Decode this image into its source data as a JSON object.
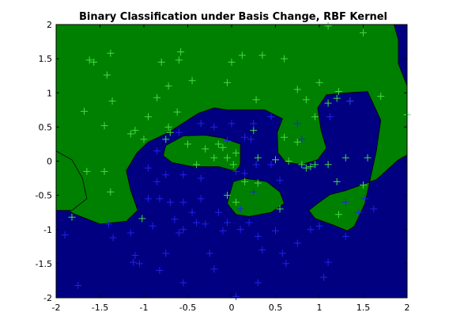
{
  "chart_data": {
    "type": "scatter",
    "title": "Binary Classification under Basis Change, RBF Kernel",
    "xlabel": "",
    "ylabel": "",
    "xlim": [
      -2,
      2
    ],
    "ylim": [
      -2,
      2
    ],
    "xticks": [
      -2,
      -1.5,
      -1,
      -0.5,
      0,
      0.5,
      1,
      1.5,
      2
    ],
    "yticks": [
      -2,
      -1.5,
      -1,
      -0.5,
      0,
      0.5,
      1,
      1.5,
      2
    ],
    "xtick_labels": [
      "-2",
      "-1.5",
      "-1",
      "-0.5",
      "0",
      "0.5",
      "1",
      "1.5",
      "2"
    ],
    "ytick_labels": [
      "-2",
      "-1.5",
      "-1",
      "-0.5",
      "0",
      "0.5",
      "1",
      "1.5",
      "2"
    ],
    "grid": false,
    "marker": "+",
    "background_region": {
      "label": "class 2 decision region",
      "color": "#000080"
    },
    "decision_regions": [
      {
        "class": "class 1",
        "color": "#008000",
        "boundary": [
          [
            -2,
            2
          ],
          [
            1.85,
            2
          ],
          [
            1.9,
            1.78
          ],
          [
            1.9,
            1.43
          ],
          [
            2,
            1.1
          ],
          [
            2,
            0.09
          ],
          [
            1.9,
            0.02
          ],
          [
            1.65,
            -0.27
          ],
          [
            1.3,
            -0.43
          ],
          [
            1.12,
            -0.49
          ],
          [
            1,
            -0.6
          ],
          [
            0.88,
            -0.72
          ],
          [
            0.95,
            -0.84
          ],
          [
            1.15,
            -0.93
          ],
          [
            1.32,
            -1.02
          ],
          [
            1.4,
            -0.95
          ],
          [
            1.52,
            -0.62
          ],
          [
            1.65,
            0.15
          ],
          [
            1.7,
            0.6
          ],
          [
            1.55,
            1.02
          ],
          [
            1.3,
            1.0
          ],
          [
            1.08,
            0.97
          ],
          [
            0.98,
            0.78
          ],
          [
            1.02,
            0.45
          ],
          [
            1.08,
            0.19
          ],
          [
            0.98,
            0.02
          ],
          [
            0.8,
            -0.05
          ],
          [
            0.62,
            -0.02
          ],
          [
            0.53,
            0.12
          ],
          [
            0.52,
            0.42
          ],
          [
            0.58,
            0.62
          ],
          [
            0.38,
            0.75
          ],
          [
            0.14,
            0.75
          ],
          [
            -0.05,
            0.75
          ],
          [
            -0.2,
            0.78
          ],
          [
            -0.38,
            0.7
          ],
          [
            -0.55,
            0.56
          ],
          [
            -0.72,
            0.42
          ],
          [
            -0.95,
            0.28
          ],
          [
            -1.08,
            0.12
          ],
          [
            -1.2,
            -0.14
          ],
          [
            -1.15,
            -0.43
          ],
          [
            -1.07,
            -0.72
          ],
          [
            -1.2,
            -0.88
          ],
          [
            -1.5,
            -0.92
          ],
          [
            -1.8,
            -0.77
          ],
          [
            -2,
            -0.6
          ]
        ]
      },
      {
        "class": "class 1",
        "color": "#008000",
        "boundary": [
          [
            -2,
            0.15
          ],
          [
            -1.82,
            0.02
          ],
          [
            -1.7,
            -0.25
          ],
          [
            -1.65,
            -0.55
          ],
          [
            -1.82,
            -0.72
          ],
          [
            -2,
            -0.72
          ]
        ]
      },
      {
        "class": "class 1",
        "color": "#008000",
        "boundary": [
          [
            -0.75,
            0.23
          ],
          [
            -0.55,
            0.37
          ],
          [
            -0.3,
            0.38
          ],
          [
            -0.1,
            0.34
          ],
          [
            0.1,
            0.25
          ],
          [
            0.1,
            -0.05
          ],
          [
            0.05,
            -0.15
          ],
          [
            -0.15,
            -0.08
          ],
          [
            -0.45,
            -0.08
          ],
          [
            -0.68,
            -0.02
          ],
          [
            -0.78,
            0.08
          ]
        ]
      },
      {
        "class": "class 1",
        "color": "#008000",
        "boundary": [
          [
            -0.05,
            -0.62
          ],
          [
            0.02,
            -0.3
          ],
          [
            0.15,
            -0.25
          ],
          [
            0.4,
            -0.3
          ],
          [
            0.55,
            -0.45
          ],
          [
            0.6,
            -0.62
          ],
          [
            0.45,
            -0.75
          ],
          [
            0.2,
            -0.81
          ],
          [
            0.05,
            -0.78
          ]
        ]
      }
    ],
    "series": [
      {
        "name": "",
        "color": "#44dd44",
        "points": [
          [
            -1.62,
            1.48
          ],
          [
            -1.57,
            1.45
          ],
          [
            -1.38,
            1.58
          ],
          [
            -1.42,
            1.26
          ],
          [
            -1.36,
            0.88
          ],
          [
            -1.68,
            0.73
          ],
          [
            -1.45,
            0.52
          ],
          [
            -1.1,
            0.45
          ],
          [
            -0.95,
            0.65
          ],
          [
            -0.85,
            0.93
          ],
          [
            -0.8,
            1.45
          ],
          [
            -0.6,
            1.48
          ],
          [
            -0.58,
            1.6
          ],
          [
            -0.72,
            1.1
          ],
          [
            -0.45,
            1.18
          ],
          [
            -0.62,
            0.72
          ],
          [
            -0.72,
            0.5
          ],
          [
            -0.7,
            0.42
          ],
          [
            -0.75,
            0.32
          ],
          [
            -1.0,
            0.32
          ],
          [
            -1.15,
            0.4
          ],
          [
            -0.5,
            0.25
          ],
          [
            -0.3,
            0.18
          ],
          [
            -0.1,
            0.2
          ],
          [
            -0.05,
            0.05
          ],
          [
            0.05,
            0.12
          ],
          [
            0.02,
            -0.05
          ],
          [
            -0.15,
            0.25
          ],
          [
            -0.4,
            -0.05
          ],
          [
            -0.2,
            0.05
          ],
          [
            0.0,
            1.45
          ],
          [
            0.12,
            1.55
          ],
          [
            0.35,
            1.55
          ],
          [
            0.6,
            1.5
          ],
          [
            -0.05,
            1.15
          ],
          [
            0.28,
            0.9
          ],
          [
            0.75,
            1.05
          ],
          [
            0.85,
            0.9
          ],
          [
            1.0,
            1.15
          ],
          [
            1.22,
            1.02
          ],
          [
            1.2,
            0.92
          ],
          [
            1.35,
            0.88
          ],
          [
            1.1,
            0.85
          ],
          [
            0.95,
            0.65
          ],
          [
            0.6,
            0.35
          ],
          [
            0.75,
            0.28
          ],
          [
            0.65,
            0.0
          ],
          [
            0.8,
            -0.05
          ],
          [
            0.9,
            -0.08
          ],
          [
            0.95,
            -0.05
          ],
          [
            0.85,
            -0.1
          ],
          [
            1.1,
            -0.05
          ],
          [
            0.5,
            0.02
          ],
          [
            0.3,
            0.05
          ],
          [
            0.25,
            0.45
          ],
          [
            1.3,
            0.05
          ],
          [
            1.5,
            -0.35
          ],
          [
            1.55,
            0.05
          ],
          [
            1.7,
            0.95
          ],
          [
            2.0,
            0.68
          ],
          [
            1.1,
            1.98
          ],
          [
            1.5,
            1.88
          ],
          [
            0.15,
            -0.3
          ],
          [
            0.3,
            -0.32
          ],
          [
            0.05,
            -0.6
          ],
          [
            -0.05,
            -0.5
          ],
          [
            0.55,
            -0.7
          ],
          [
            1.2,
            -0.3
          ],
          [
            1.22,
            -0.78
          ],
          [
            -1.02,
            -0.84
          ],
          [
            -1.38,
            -0.45
          ],
          [
            -1.65,
            -0.15
          ],
          [
            -1.82,
            -0.82
          ],
          [
            -1.45,
            -0.15
          ]
        ]
      },
      {
        "name": "",
        "color": "#2222ee",
        "points": [
          [
            -1.9,
            -1.08
          ],
          [
            -1.75,
            -1.82
          ],
          [
            -1.4,
            -0.92
          ],
          [
            -1.35,
            -1.12
          ],
          [
            -1.1,
            -1.38
          ],
          [
            -1.12,
            -1.48
          ],
          [
            -1.05,
            -1.5
          ],
          [
            -0.9,
            -0.95
          ],
          [
            -0.85,
            -0.3
          ],
          [
            -0.82,
            -0.55
          ],
          [
            -0.7,
            -0.6
          ],
          [
            -0.65,
            -0.85
          ],
          [
            -0.6,
            -1.05
          ],
          [
            -0.55,
            -1.0
          ],
          [
            -0.45,
            -0.75
          ],
          [
            -0.4,
            -0.9
          ],
          [
            -0.3,
            -0.92
          ],
          [
            -0.25,
            -1.35
          ],
          [
            -0.2,
            -1.58
          ],
          [
            -0.1,
            -1.02
          ],
          [
            -0.05,
            -0.9
          ],
          [
            0.1,
            -1.0
          ],
          [
            0.2,
            -0.9
          ],
          [
            0.3,
            -1.1
          ],
          [
            0.35,
            -1.3
          ],
          [
            0.5,
            -1.02
          ],
          [
            0.58,
            -1.35
          ],
          [
            0.62,
            -1.5
          ],
          [
            0.75,
            -1.2
          ],
          [
            0.9,
            -1.0
          ],
          [
            1.0,
            -0.95
          ],
          [
            1.05,
            -1.7
          ],
          [
            1.1,
            -1.48
          ],
          [
            1.3,
            -1.1
          ],
          [
            1.62,
            -0.7
          ],
          [
            1.45,
            -0.75
          ],
          [
            1.52,
            -0.55
          ],
          [
            1.3,
            -0.6
          ],
          [
            1.35,
            0.88
          ],
          [
            1.12,
            0.65
          ],
          [
            0.8,
            0.32
          ],
          [
            0.75,
            0.55
          ],
          [
            0.45,
            0.65
          ],
          [
            0.25,
            0.55
          ],
          [
            0.22,
            0.32
          ],
          [
            0.15,
            0.35
          ],
          [
            0.15,
            -0.18
          ],
          [
            0.28,
            -0.05
          ],
          [
            0.45,
            -0.05
          ],
          [
            0.55,
            -0.28
          ],
          [
            0.05,
            -0.15
          ],
          [
            0.1,
            -0.7
          ],
          [
            0.25,
            -0.45
          ],
          [
            -0.15,
            -0.75
          ],
          [
            -0.35,
            -0.55
          ],
          [
            -0.55,
            -0.6
          ],
          [
            -0.55,
            -0.2
          ],
          [
            -0.75,
            -0.2
          ],
          [
            -0.95,
            -0.1
          ],
          [
            -0.85,
            0.15
          ],
          [
            -0.6,
            0.42
          ],
          [
            -0.35,
            0.55
          ],
          [
            -0.2,
            0.5
          ],
          [
            0.0,
            0.55
          ],
          [
            -0.05,
            0.3
          ],
          [
            -0.35,
            -0.25
          ],
          [
            -0.95,
            -0.55
          ],
          [
            -1.15,
            -1.05
          ],
          [
            -0.75,
            -1.35
          ],
          [
            -0.55,
            -1.78
          ],
          [
            -0.82,
            -1.6
          ],
          [
            0.05,
            -1.98
          ],
          [
            0.3,
            -1.78
          ]
        ]
      }
    ]
  }
}
